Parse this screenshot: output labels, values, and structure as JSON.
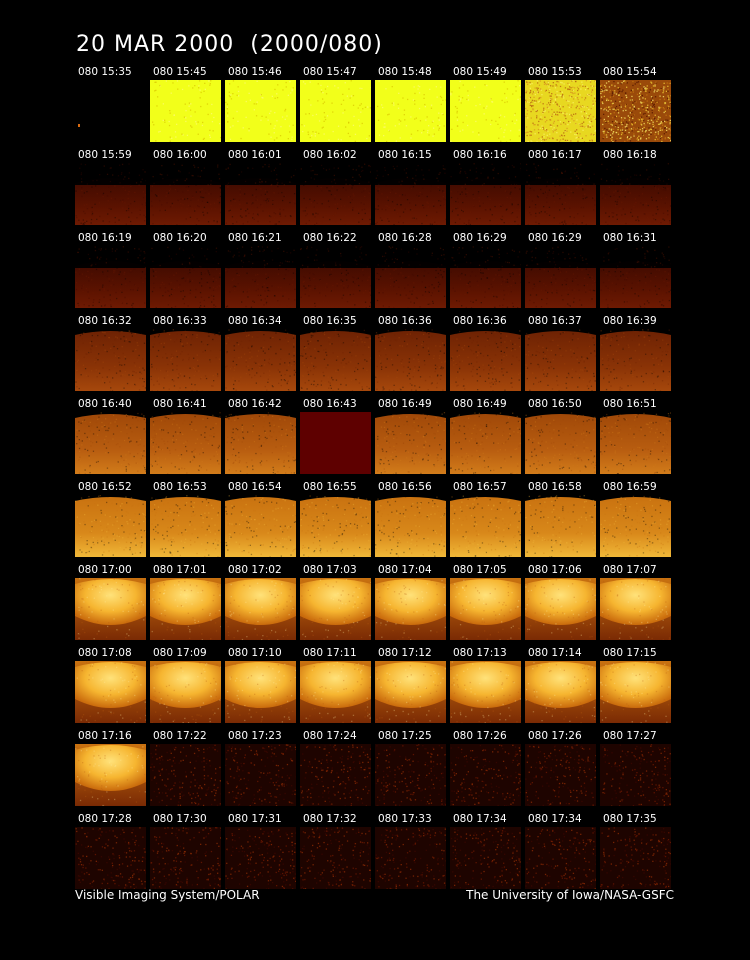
{
  "title": "20 MAR 2000  (2000/080)",
  "footer": {
    "instrument": "Visible Imaging System/POLAR",
    "credit": "The University of Iowa/NASA-GSFC"
  },
  "frames": [
    {
      "time": "080 15:35",
      "kind": "dark"
    },
    {
      "time": "080 15:45",
      "kind": "saturated"
    },
    {
      "time": "080 15:46",
      "kind": "saturated"
    },
    {
      "time": "080 15:47",
      "kind": "saturated"
    },
    {
      "time": "080 15:48",
      "kind": "saturated"
    },
    {
      "time": "080 15:49",
      "kind": "saturated"
    },
    {
      "time": "080 15:53",
      "kind": "saturated-noisy"
    },
    {
      "time": "080 15:54",
      "kind": "noisy"
    },
    {
      "time": "080 15:59",
      "kind": "faint"
    },
    {
      "time": "080 16:00",
      "kind": "faint"
    },
    {
      "time": "080 16:01",
      "kind": "faint"
    },
    {
      "time": "080 16:02",
      "kind": "faint"
    },
    {
      "time": "080 16:15",
      "kind": "faint"
    },
    {
      "time": "080 16:16",
      "kind": "faint"
    },
    {
      "time": "080 16:17",
      "kind": "faint"
    },
    {
      "time": "080 16:18",
      "kind": "faint"
    },
    {
      "time": "080 16:19",
      "kind": "faint"
    },
    {
      "time": "080 16:20",
      "kind": "faint"
    },
    {
      "time": "080 16:21",
      "kind": "faint"
    },
    {
      "time": "080 16:22",
      "kind": "faint"
    },
    {
      "time": "080 16:28",
      "kind": "faint"
    },
    {
      "time": "080 16:29",
      "kind": "faint"
    },
    {
      "time": "080 16:29",
      "kind": "faint"
    },
    {
      "time": "080 16:31",
      "kind": "faint"
    },
    {
      "time": "080 16:32",
      "kind": "dim"
    },
    {
      "time": "080 16:33",
      "kind": "dim"
    },
    {
      "time": "080 16:34",
      "kind": "dim"
    },
    {
      "time": "080 16:35",
      "kind": "dim"
    },
    {
      "time": "080 16:36",
      "kind": "dim"
    },
    {
      "time": "080 16:36",
      "kind": "dim"
    },
    {
      "time": "080 16:37",
      "kind": "dim"
    },
    {
      "time": "080 16:39",
      "kind": "dim"
    },
    {
      "time": "080 16:40",
      "kind": "medium"
    },
    {
      "time": "080 16:41",
      "kind": "medium"
    },
    {
      "time": "080 16:42",
      "kind": "medium"
    },
    {
      "time": "080 16:43",
      "kind": "blank"
    },
    {
      "time": "080 16:49",
      "kind": "medium"
    },
    {
      "time": "080 16:49",
      "kind": "medium"
    },
    {
      "time": "080 16:50",
      "kind": "medium"
    },
    {
      "time": "080 16:51",
      "kind": "medium"
    },
    {
      "time": "080 16:52",
      "kind": "bright"
    },
    {
      "time": "080 16:53",
      "kind": "bright"
    },
    {
      "time": "080 16:54",
      "kind": "bright"
    },
    {
      "time": "080 16:55",
      "kind": "bright"
    },
    {
      "time": "080 16:56",
      "kind": "bright"
    },
    {
      "time": "080 16:57",
      "kind": "bright"
    },
    {
      "time": "080 16:58",
      "kind": "bright"
    },
    {
      "time": "080 16:59",
      "kind": "bright"
    },
    {
      "time": "080 17:00",
      "kind": "earth"
    },
    {
      "time": "080 17:01",
      "kind": "earth"
    },
    {
      "time": "080 17:02",
      "kind": "earth"
    },
    {
      "time": "080 17:03",
      "kind": "earth"
    },
    {
      "time": "080 17:04",
      "kind": "earth"
    },
    {
      "time": "080 17:05",
      "kind": "earth"
    },
    {
      "time": "080 17:06",
      "kind": "earth"
    },
    {
      "time": "080 17:07",
      "kind": "earth"
    },
    {
      "time": "080 17:08",
      "kind": "earth"
    },
    {
      "time": "080 17:09",
      "kind": "earth"
    },
    {
      "time": "080 17:10",
      "kind": "earth"
    },
    {
      "time": "080 17:11",
      "kind": "earth"
    },
    {
      "time": "080 17:12",
      "kind": "earth"
    },
    {
      "time": "080 17:13",
      "kind": "earth"
    },
    {
      "time": "080 17:14",
      "kind": "earth"
    },
    {
      "time": "080 17:15",
      "kind": "earth"
    },
    {
      "time": "080 17:16",
      "kind": "earth"
    },
    {
      "time": "080 17:22",
      "kind": "noise-dark"
    },
    {
      "time": "080 17:23",
      "kind": "noise-dark"
    },
    {
      "time": "080 17:24",
      "kind": "noise-dark"
    },
    {
      "time": "080 17:25",
      "kind": "noise-dark"
    },
    {
      "time": "080 17:26",
      "kind": "noise-dark"
    },
    {
      "time": "080 17:26",
      "kind": "noise-dark"
    },
    {
      "time": "080 17:27",
      "kind": "noise-dark"
    },
    {
      "time": "080 17:28",
      "kind": "noise-dark"
    },
    {
      "time": "080 17:30",
      "kind": "noise-dark"
    },
    {
      "time": "080 17:31",
      "kind": "noise-dark"
    },
    {
      "time": "080 17:32",
      "kind": "noise-dark"
    },
    {
      "time": "080 17:33",
      "kind": "noise-dark"
    },
    {
      "time": "080 17:34",
      "kind": "noise-dark"
    },
    {
      "time": "080 17:34",
      "kind": "noise-dark"
    },
    {
      "time": "080 17:35",
      "kind": "noise-dark"
    }
  ],
  "colors": {
    "background": "#000000",
    "saturated": "#f2ff1a",
    "faint": "#5a1200",
    "dim": "#8a3306",
    "medium": "#b85d10",
    "bright": "#d8881a",
    "earth_core": "#ffe27a",
    "blank": "#5e0000",
    "noise_dark": "#1e0400"
  }
}
